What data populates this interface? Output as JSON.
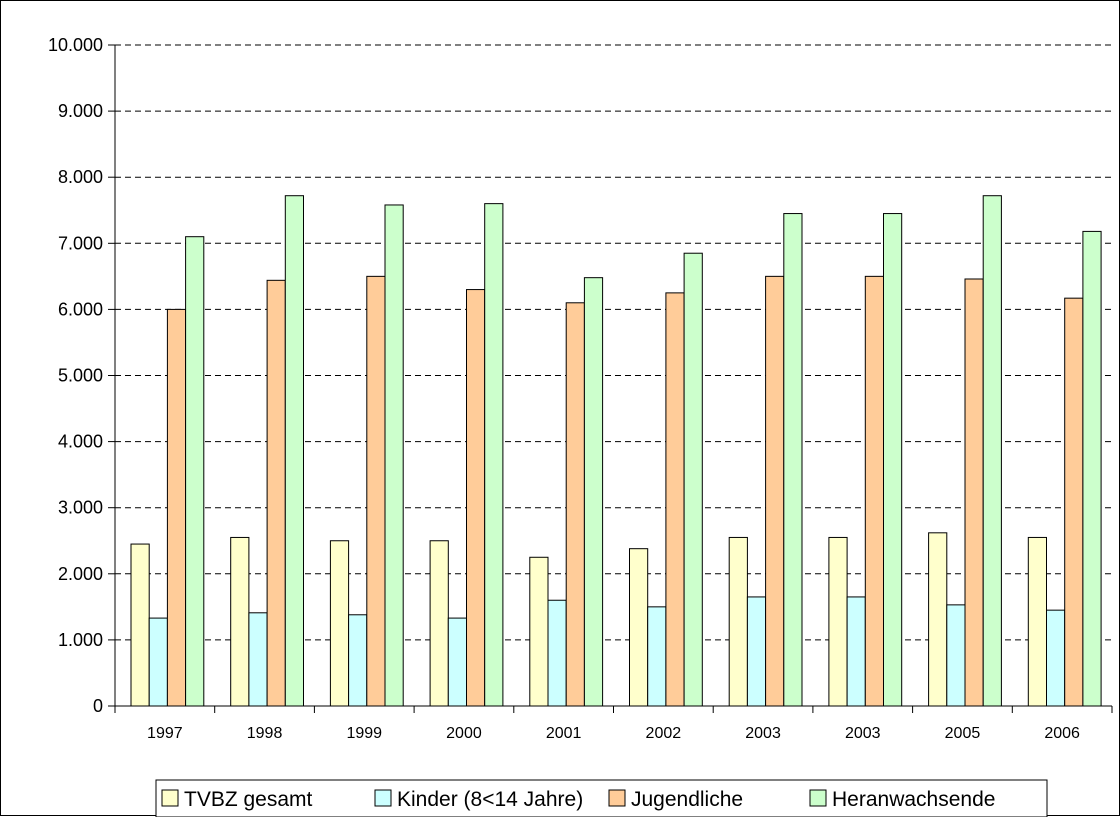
{
  "chart_data": {
    "type": "bar",
    "title": "",
    "xlabel": "",
    "ylabel": "",
    "ylim": [
      0,
      10000
    ],
    "y_ticks": [
      "0",
      "1.000",
      "2.000",
      "3.000",
      "4.000",
      "5.000",
      "6.000",
      "7.000",
      "8.000",
      "9.000",
      "10.000"
    ],
    "grid": true,
    "legend_position": "bottom",
    "categories": [
      "1997",
      "1998",
      "1999",
      "2000",
      "2001",
      "2002",
      "2003",
      "2003",
      "2005",
      "2006"
    ],
    "series": [
      {
        "name": "TVBZ gesamt",
        "color": "#FFFFCC",
        "values": [
          2450,
          2550,
          2500,
          2500,
          2250,
          2380,
          2550,
          2550,
          2620,
          2550
        ]
      },
      {
        "name": "Kinder (8<14 Jahre)",
        "color": "#CCFFFF",
        "values": [
          1330,
          1410,
          1380,
          1330,
          1600,
          1500,
          1650,
          1650,
          1530,
          1450
        ]
      },
      {
        "name": "Jugendliche",
        "color": "#FFCC99",
        "values": [
          6000,
          6440,
          6500,
          6300,
          6100,
          6250,
          6500,
          6500,
          6460,
          6170
        ]
      },
      {
        "name": "Heranwachsende",
        "color": "#CCFFCC",
        "values": [
          7100,
          7720,
          7580,
          7600,
          6480,
          6850,
          7450,
          7450,
          7720,
          7180
        ]
      }
    ]
  }
}
